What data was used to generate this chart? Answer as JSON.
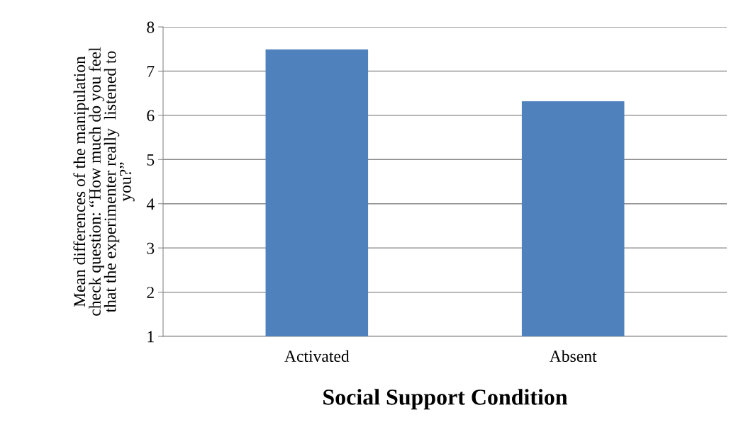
{
  "chart_data": {
    "type": "bar",
    "xlabel": "Social Support Condition",
    "ylabel": "Mean differences of the manipulation\ncheck question: “How much do you feel\nthat the experimenter really  listened to\nyou?”",
    "categories": [
      "Activated",
      "Absent"
    ],
    "values": [
      7.49,
      6.32
    ],
    "color": "#4f81bd",
    "ylim": [
      1,
      8
    ],
    "yticks": [
      1,
      2,
      3,
      4,
      5,
      6,
      7,
      8
    ],
    "grid": "y",
    "legend": false
  }
}
